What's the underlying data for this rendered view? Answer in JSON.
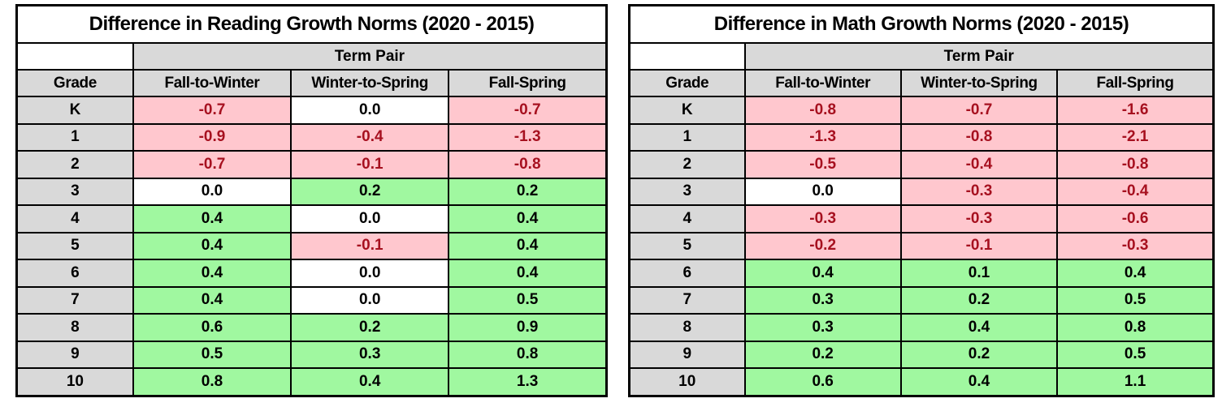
{
  "colors": {
    "header_bg": "#D9D9D9",
    "title_bg": "#FFFFFF",
    "negative_bg": "#FFC7CE",
    "negative_text": "#A6101F",
    "positive_bg": "#A0F8A0",
    "zero_bg": "#FFFFFF",
    "text": "#000000",
    "border": "#000000"
  },
  "chart_data": [
    {
      "type": "table",
      "title": "Difference in Reading Growth Norms (2020 - 2015)",
      "group_header": "Term Pair",
      "columns": [
        "Grade",
        "Fall-to-Winter",
        "Winter-to-Spring",
        "Fall-Spring"
      ],
      "rows": [
        [
          "K",
          "-0.7",
          "0.0",
          "-0.7"
        ],
        [
          "1",
          "-0.9",
          "-0.4",
          "-1.3"
        ],
        [
          "2",
          "-0.7",
          "-0.1",
          "-0.8"
        ],
        [
          "3",
          "0.0",
          "0.2",
          "0.2"
        ],
        [
          "4",
          "0.4",
          "0.0",
          "0.4"
        ],
        [
          "5",
          "0.4",
          "-0.1",
          "0.4"
        ],
        [
          "6",
          "0.4",
          "0.0",
          "0.4"
        ],
        [
          "7",
          "0.4",
          "0.0",
          "0.5"
        ],
        [
          "8",
          "0.6",
          "0.2",
          "0.9"
        ],
        [
          "9",
          "0.5",
          "0.3",
          "0.8"
        ],
        [
          "10",
          "0.8",
          "0.4",
          "1.3"
        ]
      ]
    },
    {
      "type": "table",
      "title": "Difference in Math Growth Norms (2020 - 2015)",
      "group_header": "Term Pair",
      "columns": [
        "Grade",
        "Fall-to-Winter",
        "Winter-to-Spring",
        "Fall-Spring"
      ],
      "rows": [
        [
          "K",
          "-0.8",
          "-0.7",
          "-1.6"
        ],
        [
          "1",
          "-1.3",
          "-0.8",
          "-2.1"
        ],
        [
          "2",
          "-0.5",
          "-0.4",
          "-0.8"
        ],
        [
          "3",
          "0.0",
          "-0.3",
          "-0.4"
        ],
        [
          "4",
          "-0.3",
          "-0.3",
          "-0.6"
        ],
        [
          "5",
          "-0.2",
          "-0.1",
          "-0.3"
        ],
        [
          "6",
          "0.4",
          "0.1",
          "0.4"
        ],
        [
          "7",
          "0.3",
          "0.2",
          "0.5"
        ],
        [
          "8",
          "0.3",
          "0.4",
          "0.8"
        ],
        [
          "9",
          "0.2",
          "0.2",
          "0.5"
        ],
        [
          "10",
          "0.6",
          "0.4",
          "1.1"
        ]
      ]
    }
  ]
}
